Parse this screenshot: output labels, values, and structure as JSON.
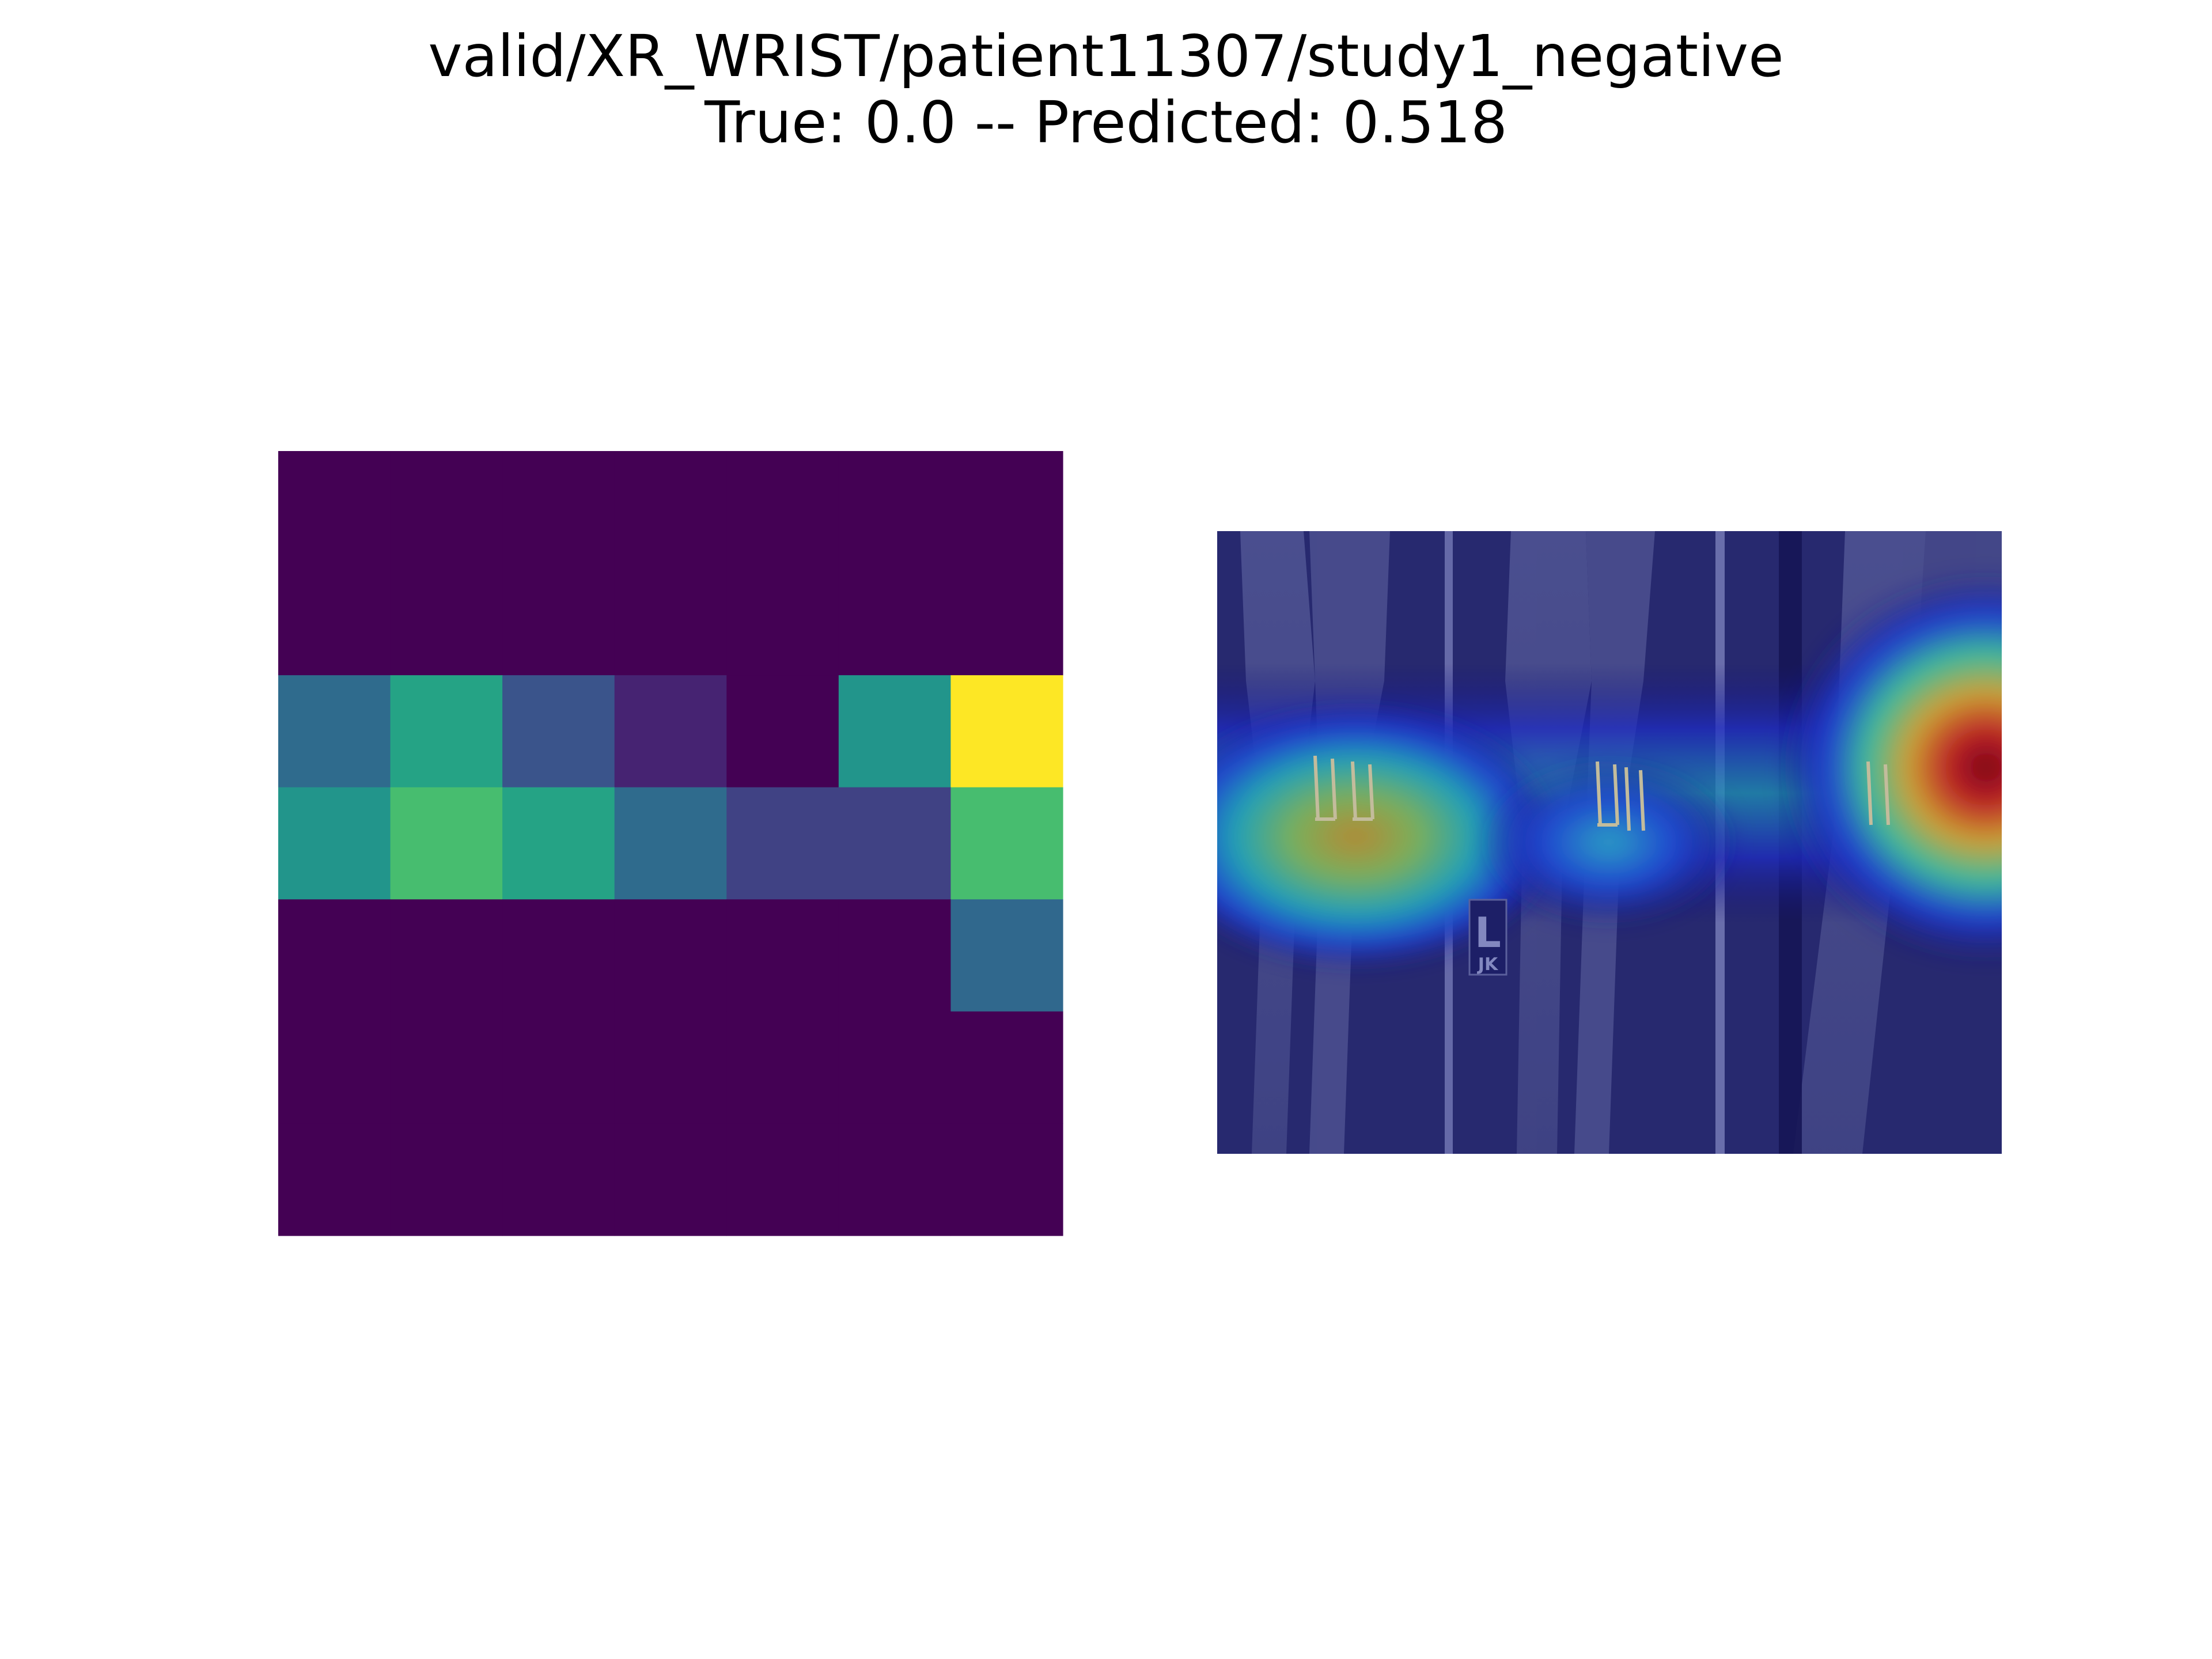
{
  "figure": {
    "title_line1": "valid/XR_WRIST/patient11307/study1_negative",
    "title_line2": "True: 0.0 -- Predicted: 0.518"
  },
  "chart_data": [
    {
      "type": "heatmap",
      "colormap": "viridis",
      "rows": 7,
      "cols": 7,
      "values": [
        [
          0.0,
          0.0,
          0.0,
          0.0,
          0.0,
          0.0,
          0.0
        ],
        [
          0.0,
          0.0,
          0.0,
          0.0,
          0.0,
          0.0,
          0.0
        ],
        [
          0.35,
          0.58,
          0.26,
          0.1,
          0.0,
          0.52,
          1.0
        ],
        [
          0.52,
          0.7,
          0.58,
          0.35,
          0.2,
          0.2,
          0.7
        ],
        [
          0.0,
          0.0,
          0.0,
          0.0,
          0.0,
          0.0,
          0.34
        ],
        [
          0.0,
          0.0,
          0.0,
          0.0,
          0.0,
          0.0,
          0.0
        ],
        [
          0.0,
          0.0,
          0.0,
          0.0,
          0.0,
          0.0,
          0.0
        ]
      ],
      "axes": "off"
    },
    {
      "type": "heatmap",
      "description_kind": "activation-overlay",
      "colormap": "jet",
      "axes": "off",
      "hotspots": [
        {
          "col_frac": 0.17,
          "row_frac": 0.48,
          "intensity": 0.62
        },
        {
          "col_frac": 0.5,
          "row_frac": 0.5,
          "intensity": 0.4
        },
        {
          "col_frac": 0.98,
          "row_frac": 0.38,
          "intensity": 1.0
        }
      ],
      "marker_text": {
        "letter": "L",
        "initials": "JK"
      }
    }
  ]
}
